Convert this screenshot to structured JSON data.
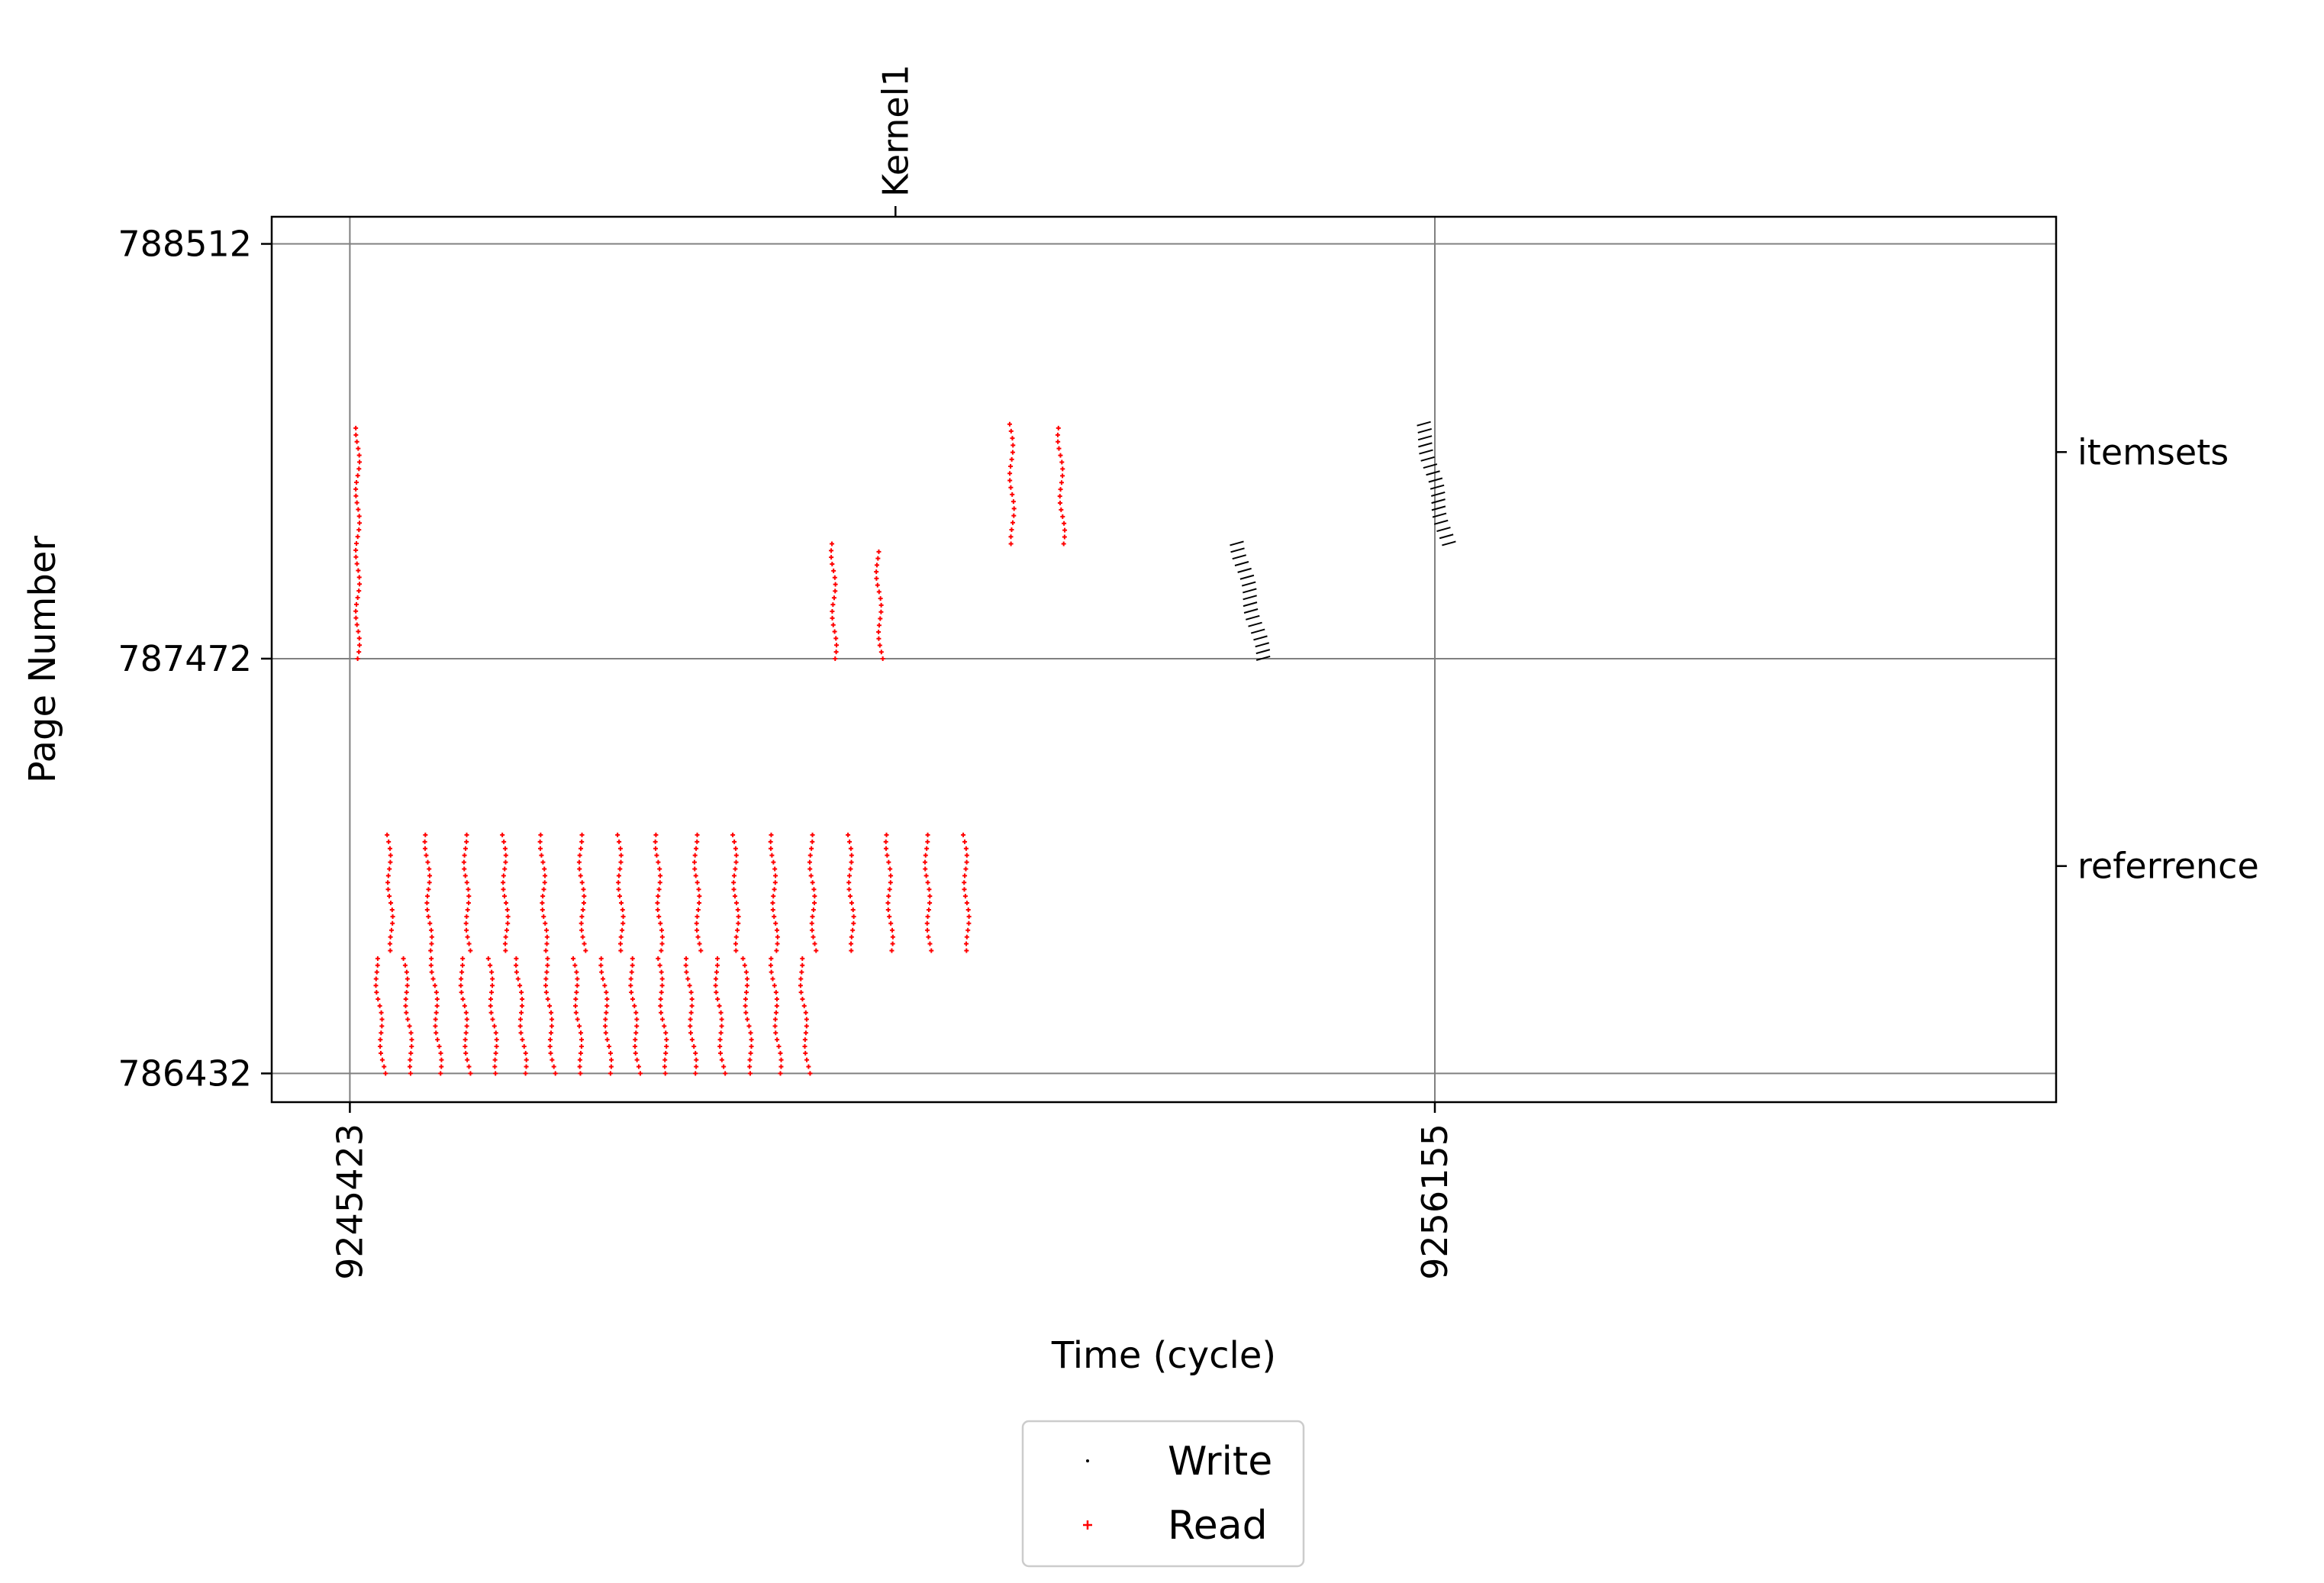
{
  "chart_data": {
    "type": "scatter",
    "title": "",
    "xlabel": "Time (cycle)",
    "ylabel": "Page Number",
    "xlim": [
      9244650,
      9262300
    ],
    "ylim": [
      786360,
      788580
    ],
    "x_ticks": [
      9245423,
      9256155
    ],
    "x_tick_labels": [
      "9245423",
      "9256155"
    ],
    "y_ticks": [
      786432,
      787472,
      788512
    ],
    "y_tick_labels": [
      "786432",
      "787472",
      "788512"
    ],
    "top_ticks": [
      {
        "x": 9250820,
        "label": "Kernel1"
      }
    ],
    "right_ticks": [
      {
        "y": 787990,
        "label": "itemsets"
      },
      {
        "y": 786952,
        "label": "referrence"
      }
    ],
    "grid": true,
    "legend": {
      "placement": "bottom-center",
      "entries": [
        {
          "name": "Write",
          "color": "#000000"
        },
        {
          "name": "Read",
          "color": "#ff0000"
        }
      ]
    },
    "series": [
      {
        "name": "Read",
        "color": "#ff0000",
        "marker": "plus",
        "stripes": [
          {
            "x0": 9245500,
            "x1": 9245500,
            "y0": 787472,
            "y1": 788050
          },
          {
            "x0": 9245680,
            "x1": 9245760,
            "y0": 786432,
            "y1": 786720
          },
          {
            "x0": 9245960,
            "x1": 9246040,
            "y0": 786432,
            "y1": 786720
          },
          {
            "x0": 9246240,
            "x1": 9246320,
            "y0": 786432,
            "y1": 786720
          },
          {
            "x0": 9246520,
            "x1": 9246600,
            "y0": 786432,
            "y1": 786720
          },
          {
            "x0": 9246800,
            "x1": 9246880,
            "y0": 786432,
            "y1": 786720
          },
          {
            "x0": 9247080,
            "x1": 9247160,
            "y0": 786432,
            "y1": 786720
          },
          {
            "x0": 9247360,
            "x1": 9247440,
            "y0": 786432,
            "y1": 786720
          },
          {
            "x0": 9247640,
            "x1": 9247720,
            "y0": 786432,
            "y1": 786720
          },
          {
            "x0": 9247920,
            "x1": 9248000,
            "y0": 786432,
            "y1": 786720
          },
          {
            "x0": 9248200,
            "x1": 9248280,
            "y0": 786432,
            "y1": 786720
          },
          {
            "x0": 9248480,
            "x1": 9248560,
            "y0": 786432,
            "y1": 786720
          },
          {
            "x0": 9248760,
            "x1": 9248840,
            "y0": 786432,
            "y1": 786720
          },
          {
            "x0": 9249040,
            "x1": 9249120,
            "y0": 786432,
            "y1": 786720
          },
          {
            "x0": 9249320,
            "x1": 9249400,
            "y0": 786432,
            "y1": 786720
          },
          {
            "x0": 9249600,
            "x1": 9249680,
            "y0": 786432,
            "y1": 786720
          },
          {
            "x0": 9249880,
            "x1": 9249960,
            "y0": 786432,
            "y1": 786720
          },
          {
            "x0": 9245800,
            "x1": 9245840,
            "y0": 786740,
            "y1": 787030
          },
          {
            "x0": 9246180,
            "x1": 9246220,
            "y0": 786740,
            "y1": 787030
          },
          {
            "x0": 9246560,
            "x1": 9246600,
            "y0": 786740,
            "y1": 787030
          },
          {
            "x0": 9246940,
            "x1": 9246980,
            "y0": 786740,
            "y1": 787030
          },
          {
            "x0": 9247320,
            "x1": 9247360,
            "y0": 786740,
            "y1": 787030
          },
          {
            "x0": 9247700,
            "x1": 9247740,
            "y0": 786740,
            "y1": 787030
          },
          {
            "x0": 9248080,
            "x1": 9248120,
            "y0": 786740,
            "y1": 787030
          },
          {
            "x0": 9248460,
            "x1": 9248500,
            "y0": 786740,
            "y1": 787030
          },
          {
            "x0": 9248840,
            "x1": 9248880,
            "y0": 786740,
            "y1": 787030
          },
          {
            "x0": 9249220,
            "x1": 9249260,
            "y0": 786740,
            "y1": 787030
          },
          {
            "x0": 9249600,
            "x1": 9249640,
            "y0": 786740,
            "y1": 787030
          },
          {
            "x0": 9249980,
            "x1": 9250020,
            "y0": 786740,
            "y1": 787030
          },
          {
            "x0": 9250360,
            "x1": 9250400,
            "y0": 786740,
            "y1": 787030
          },
          {
            "x0": 9250740,
            "x1": 9250780,
            "y0": 786740,
            "y1": 787030
          },
          {
            "x0": 9251120,
            "x1": 9251160,
            "y0": 786740,
            "y1": 787030
          },
          {
            "x0": 9251500,
            "x1": 9251540,
            "y0": 786740,
            "y1": 787030
          },
          {
            "x0": 9250200,
            "x1": 9250220,
            "y0": 787472,
            "y1": 787760
          },
          {
            "x0": 9250640,
            "x1": 9250680,
            "y0": 787472,
            "y1": 787740
          },
          {
            "x0": 9251960,
            "x1": 9251980,
            "y0": 787760,
            "y1": 788060
          },
          {
            "x0": 9252440,
            "x1": 9252480,
            "y0": 787760,
            "y1": 788050
          }
        ]
      },
      {
        "name": "Write",
        "color": "#000000",
        "marker": "dot",
        "stripes": [
          {
            "x0": 9254200,
            "x1": 9254450,
            "y0": 787472,
            "y1": 787760
          },
          {
            "x0": 9256020,
            "x1": 9256270,
            "y0": 787760,
            "y1": 788060
          }
        ]
      }
    ]
  }
}
